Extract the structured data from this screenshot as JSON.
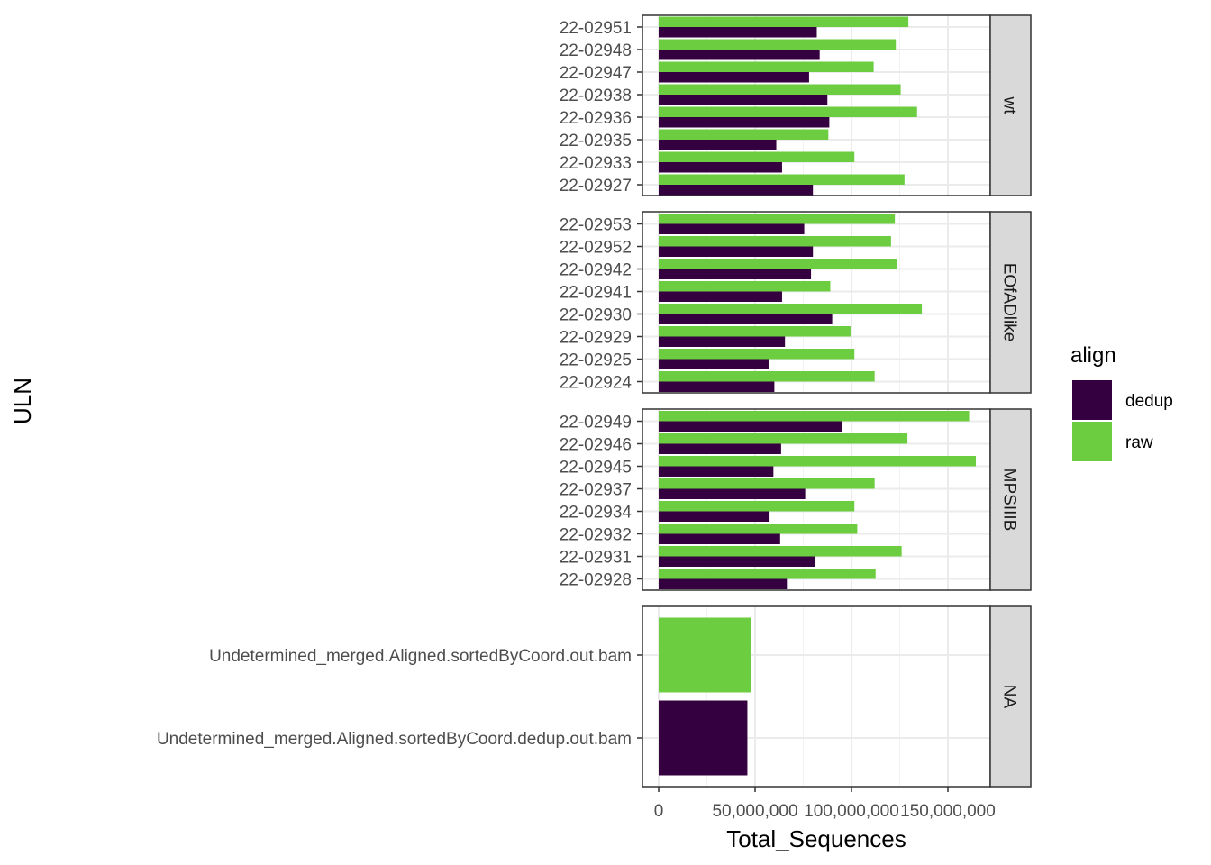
{
  "chart_data": {
    "type": "bar",
    "orientation": "horizontal",
    "facet_by": "row",
    "xlabel": "Total_Sequences",
    "ylabel": "ULN",
    "x_ticks": [
      0,
      50000000,
      100000000,
      150000000
    ],
    "x_tick_labels": [
      "0",
      "50,000,000",
      "100,000,000",
      "150,000,000"
    ],
    "xlim": [
      0,
      171000000
    ],
    "grid": true,
    "legend": {
      "title": "align",
      "position": "right",
      "entries": [
        {
          "name": "dedup",
          "color": "#35003F"
        },
        {
          "name": "raw",
          "color": "#6BCD3F"
        }
      ]
    },
    "panels": [
      {
        "strip": "wt",
        "categories": [
          "22-02951",
          "22-02948",
          "22-02947",
          "22-02938",
          "22-02936",
          "22-02935",
          "22-02933",
          "22-02927"
        ],
        "series": [
          {
            "name": "raw",
            "values": [
              129500000,
              123000000,
              111500000,
              125500000,
              134000000,
              88000000,
              101500000,
              127500000
            ]
          },
          {
            "name": "dedup",
            "values": [
              82000000,
              83500000,
              78000000,
              87500000,
              88500000,
              61000000,
              64000000,
              80000000
            ]
          }
        ]
      },
      {
        "strip": "EOfADlike",
        "categories": [
          "22-02953",
          "22-02952",
          "22-02942",
          "22-02941",
          "22-02930",
          "22-02929",
          "22-02925",
          "22-02924"
        ],
        "series": [
          {
            "name": "raw",
            "values": [
              122500000,
              120500000,
              123500000,
              89000000,
              136500000,
              99500000,
              101500000,
              112000000
            ]
          },
          {
            "name": "dedup",
            "values": [
              75500000,
              80000000,
              79000000,
              64000000,
              90000000,
              65500000,
              57000000,
              60000000
            ]
          }
        ]
      },
      {
        "strip": "MPSIIIB",
        "categories": [
          "22-02949",
          "22-02946",
          "22-02945",
          "22-02937",
          "22-02934",
          "22-02932",
          "22-02931",
          "22-02928"
        ],
        "series": [
          {
            "name": "raw",
            "values": [
              161000000,
              129000000,
              164500000,
              112000000,
              101500000,
              103000000,
              126000000,
              112500000
            ]
          },
          {
            "name": "dedup",
            "values": [
              95000000,
              63500000,
              59500000,
              76000000,
              57500000,
              63000000,
              81000000,
              66500000
            ]
          }
        ]
      },
      {
        "strip": "NA",
        "categories": [
          "Undetermined_merged.Aligned.sortedByCoord.out.bam",
          "Undetermined_merged.Aligned.sortedByCoord.dedup.out.bam"
        ],
        "series": [
          {
            "name": "raw",
            "values": [
              48000000,
              null
            ]
          },
          {
            "name": "dedup",
            "values": [
              null,
              46000000
            ]
          }
        ]
      }
    ]
  }
}
